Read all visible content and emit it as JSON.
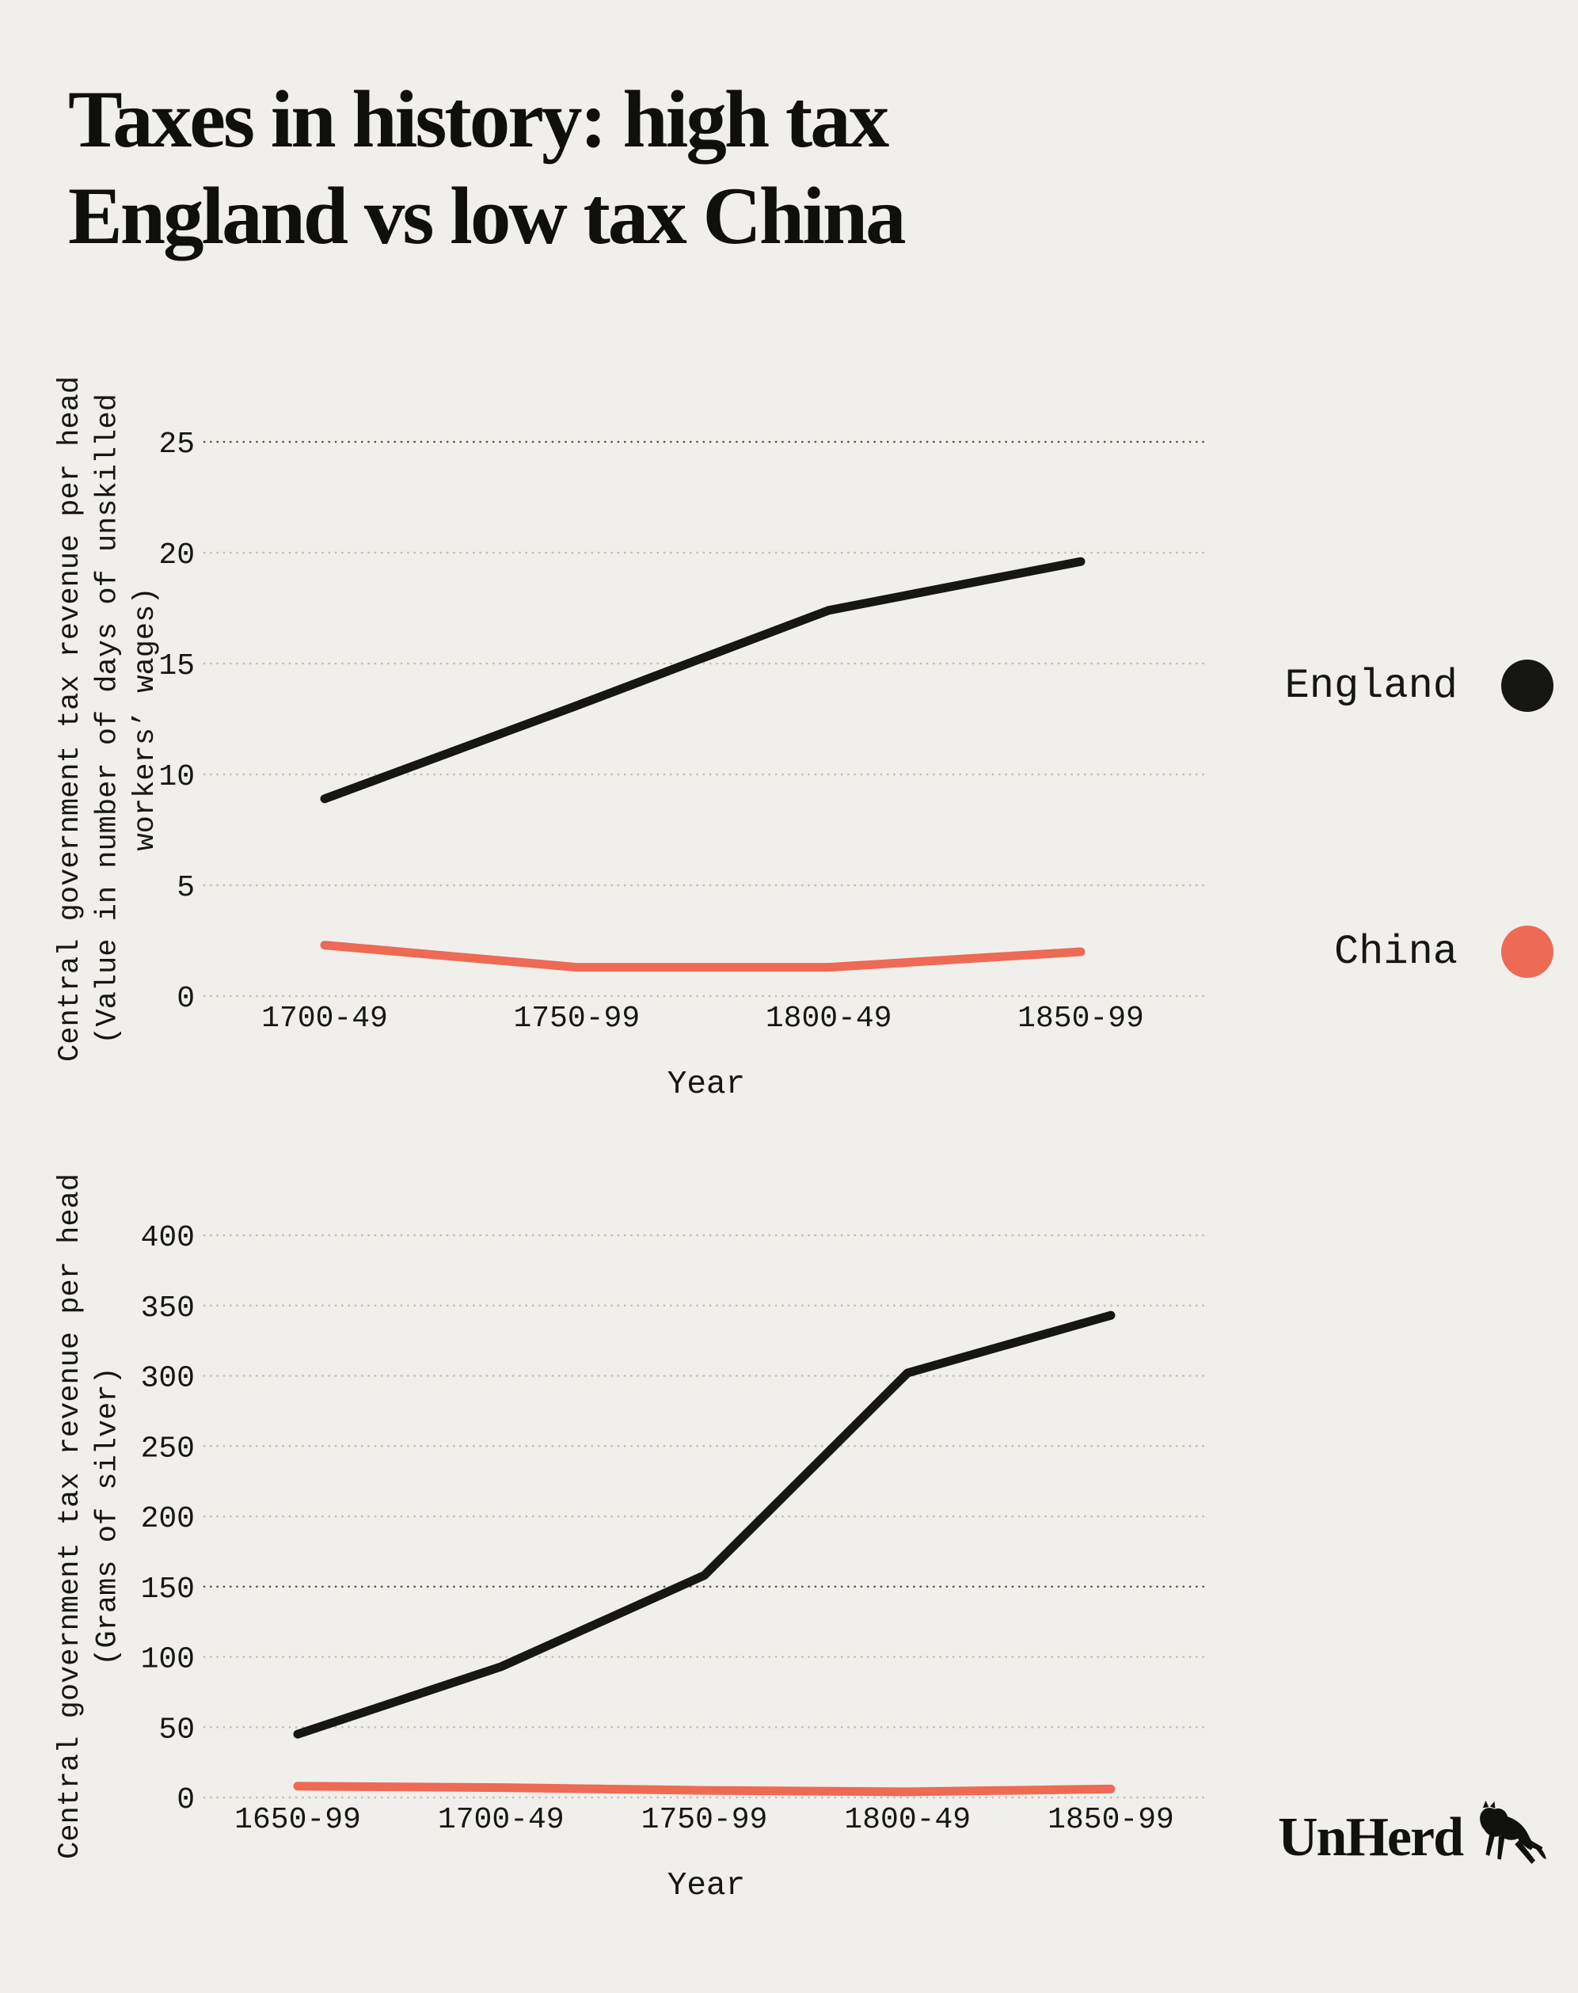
{
  "page": {
    "background": "#f0efeb",
    "text_color": "#161613"
  },
  "title": {
    "line1": "Taxes in history: high tax",
    "line2": "England vs low tax China"
  },
  "legend": {
    "items": [
      {
        "label": "England",
        "color": "#161613"
      },
      {
        "label": "China",
        "color": "#ed6a55"
      }
    ]
  },
  "logo": {
    "wordmark": "UnHerd",
    "icon": "cow-icon"
  },
  "chart_data": [
    {
      "type": "line",
      "categories": [
        "1700-49",
        "1750-99",
        "1800-49",
        "1850-99"
      ],
      "series": [
        {
          "name": "England",
          "color": "#161613",
          "values": [
            8.9,
            13.1,
            17.4,
            19.6
          ]
        },
        {
          "name": "China",
          "color": "#ed6a55",
          "values": [
            2.3,
            1.3,
            1.3,
            2.0
          ]
        }
      ],
      "xlabel": "Year",
      "ylabel_lines": [
        "Central government tax revenue per head",
        "(Value in number of days of unskilled",
        "workers’ wages)"
      ],
      "ylim": [
        0,
        25
      ],
      "yticks": [
        0,
        5,
        10,
        15,
        20,
        25
      ],
      "grid": "dotted",
      "dark_gridline_at": 25,
      "legend_position": "right"
    },
    {
      "type": "line",
      "categories": [
        "1650-99",
        "1700-49",
        "1750-99",
        "1800-49",
        "1850-99"
      ],
      "series": [
        {
          "name": "England",
          "color": "#161613",
          "values": [
            45,
            93,
            158,
            302,
            343
          ]
        },
        {
          "name": "China",
          "color": "#ed6a55",
          "values": [
            8,
            7,
            5,
            4,
            6
          ]
        }
      ],
      "xlabel": "Year",
      "ylabel_lines": [
        "Central government tax revenue per head",
        "(Grams of silver)"
      ],
      "ylim": [
        0,
        400
      ],
      "yticks": [
        0,
        50,
        100,
        150,
        200,
        250,
        300,
        350,
        400
      ],
      "grid": "dotted",
      "dark_gridline_at": 150,
      "legend_position": "right"
    }
  ]
}
